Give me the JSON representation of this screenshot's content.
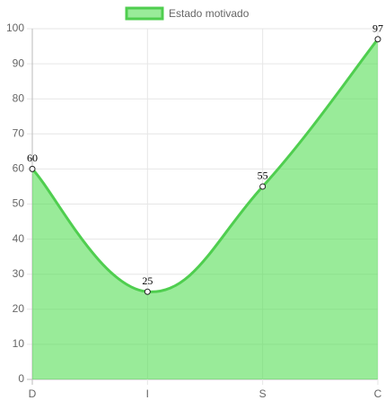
{
  "chart_data": {
    "type": "line",
    "categories": [
      "D",
      "I",
      "S",
      "C"
    ],
    "series": [
      {
        "name": "Estado motivado",
        "color": "#4fce4f",
        "fill": "rgba(80,220,80,0.58)",
        "values": [
          60,
          25,
          55,
          97
        ]
      }
    ],
    "ylim": [
      0,
      100
    ],
    "yticks": [
      0,
      10,
      20,
      30,
      40,
      50,
      60,
      70,
      80,
      90,
      100
    ],
    "grid": true,
    "legend": "top",
    "data_labels": true
  }
}
